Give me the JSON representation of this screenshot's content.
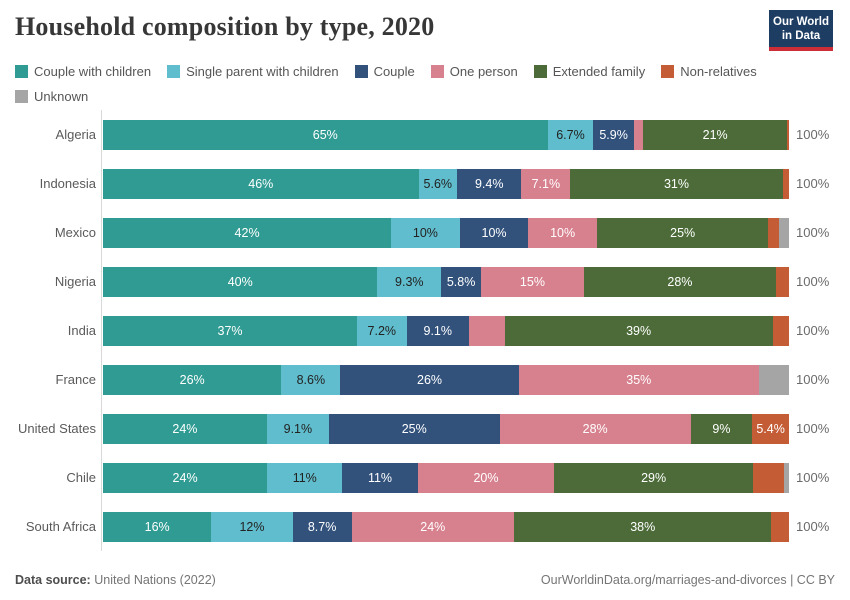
{
  "header": {
    "title": "Household composition by type, 2020",
    "logo_line1": "Our World",
    "logo_line2": "in Data"
  },
  "legend": {
    "items": [
      {
        "label": "Couple with children",
        "color": "#2F9B92",
        "label_text_color": "#ffffff"
      },
      {
        "label": "Single parent with children",
        "color": "#60BDCD",
        "label_text_color": "#222222"
      },
      {
        "label": "Couple",
        "color": "#32527C",
        "label_text_color": "#ffffff"
      },
      {
        "label": "One person",
        "color": "#D7808E",
        "label_text_color": "#ffffff"
      },
      {
        "label": "Extended family",
        "color": "#4C6B38",
        "label_text_color": "#ffffff"
      },
      {
        "label": "Non-relatives",
        "color": "#C45C35",
        "label_text_color": "#ffffff"
      },
      {
        "label": "Unknown",
        "color": "#A5A5A5",
        "label_text_color": "#ffffff"
      }
    ]
  },
  "chart_data": {
    "type": "bar",
    "stacked": true,
    "orientation": "horizontal",
    "title": "Household composition by type, 2020",
    "unit": "%",
    "xlim": [
      0,
      100
    ],
    "legend_position": "top",
    "series_names": [
      "Couple with children",
      "Single parent with children",
      "Couple",
      "One person",
      "Extended family",
      "Non-relatives",
      "Unknown"
    ],
    "categories": [
      "Algeria",
      "Indonesia",
      "Mexico",
      "Nigeria",
      "India",
      "France",
      "United States",
      "Chile",
      "South Africa"
    ],
    "rows": [
      {
        "country": "Algeria",
        "total_label": "100%",
        "values": [
          65,
          6.7,
          5.9,
          1.4,
          21,
          0.3,
          0
        ],
        "labels": [
          "65%",
          "6.7%",
          "5.9%",
          "",
          "21%",
          "",
          ""
        ]
      },
      {
        "country": "Indonesia",
        "total_label": "100%",
        "values": [
          46,
          5.6,
          9.4,
          7.1,
          31,
          0.9,
          0
        ],
        "labels": [
          "46%",
          "5.6%",
          "9.4%",
          "7.1%",
          "31%",
          "",
          ""
        ]
      },
      {
        "country": "Mexico",
        "total_label": "100%",
        "values": [
          42,
          10,
          10,
          10,
          25,
          1.6,
          1.4
        ],
        "labels": [
          "42%",
          "10%",
          "10%",
          "10%",
          "25%",
          "",
          ""
        ]
      },
      {
        "country": "Nigeria",
        "total_label": "100%",
        "values": [
          40,
          9.3,
          5.8,
          15,
          28,
          1.9,
          0
        ],
        "labels": [
          "40%",
          "9.3%",
          "5.8%",
          "15%",
          "28%",
          "",
          ""
        ]
      },
      {
        "country": "India",
        "total_label": "100%",
        "values": [
          37,
          7.2,
          9.1,
          5.2,
          39,
          2.4,
          0
        ],
        "labels": [
          "37%",
          "7.2%",
          "9.1%",
          "",
          "39%",
          "",
          ""
        ]
      },
      {
        "country": "France",
        "total_label": "100%",
        "values": [
          26,
          8.6,
          26,
          35,
          0,
          0,
          4.4
        ],
        "labels": [
          "26%",
          "8.6%",
          "26%",
          "35%",
          "",
          "",
          ""
        ]
      },
      {
        "country": "United States",
        "total_label": "100%",
        "values": [
          24,
          9.1,
          25,
          28,
          9,
          5.4,
          0
        ],
        "labels": [
          "24%",
          "9.1%",
          "25%",
          "28%",
          "9%",
          "5.4%",
          ""
        ]
      },
      {
        "country": "Chile",
        "total_label": "100%",
        "values": [
          24,
          11,
          11,
          20,
          29,
          4.6,
          0.7
        ],
        "labels": [
          "24%",
          "11%",
          "11%",
          "20%",
          "29%",
          "",
          ""
        ]
      },
      {
        "country": "South Africa",
        "total_label": "100%",
        "values": [
          16,
          12,
          8.7,
          24,
          38,
          2.6,
          0
        ],
        "labels": [
          "16%",
          "12%",
          "8.7%",
          "24%",
          "38%",
          "",
          ""
        ]
      }
    ]
  },
  "footer": {
    "source_label": "Data source:",
    "source_value": "United Nations (2022)",
    "attribution": "OurWorldinData.org/marriages-and-divorces | CC BY"
  }
}
